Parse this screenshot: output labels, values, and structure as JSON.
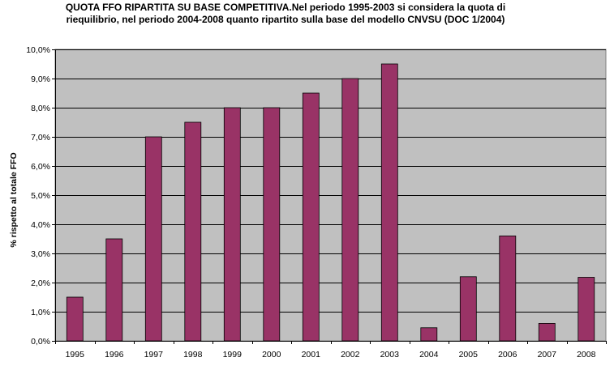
{
  "chart_data": {
    "type": "bar",
    "title": [
      "QUOTA FFO RIPARTITA SU BASE COMPETITIVA.Nel periodo 1995-2003 si considera la quota di",
      "riequilibrio, nel periodo 2004-2008 quanto ripartito sulla base del modello CNVSU (DOC 1/2004)"
    ],
    "xlabel": "",
    "ylabel": "% rispetto al totale FFO",
    "categories": [
      "1995",
      "1996",
      "1997",
      "1998",
      "1999",
      "2000",
      "2001",
      "2002",
      "2003",
      "2004",
      "2005",
      "2006",
      "2007",
      "2008"
    ],
    "values": [
      1.5,
      3.5,
      7.0,
      7.5,
      8.0,
      8.0,
      8.5,
      9.0,
      9.5,
      0.45,
      2.2,
      3.6,
      0.6,
      2.18
    ],
    "ylim": [
      0,
      10
    ],
    "yticks": [
      "0,0%",
      "1,0%",
      "2,0%",
      "3,0%",
      "4,0%",
      "5,0%",
      "6,0%",
      "7,0%",
      "8,0%",
      "9,0%",
      "10,0%"
    ],
    "grid": true,
    "legend": "none",
    "colors": {
      "bar": "#993366",
      "bar_border": "#000000",
      "plot_background": "#c0c0c0",
      "gridline": "#000000"
    }
  }
}
